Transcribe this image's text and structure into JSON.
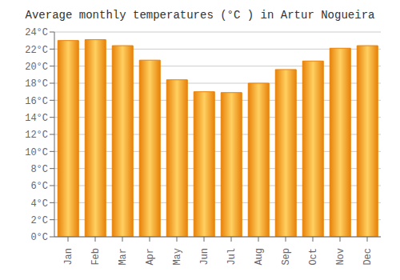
{
  "chart_data": {
    "type": "bar",
    "title": "Average monthly temperatures (°C ) in Artur Nogueira",
    "categories": [
      "Jan",
      "Feb",
      "Mar",
      "Apr",
      "May",
      "Jun",
      "Jul",
      "Aug",
      "Sep",
      "Oct",
      "Nov",
      "Dec"
    ],
    "values": [
      23.0,
      23.1,
      22.4,
      20.7,
      18.4,
      17.0,
      16.9,
      18.0,
      19.6,
      20.6,
      22.1,
      22.4
    ],
    "color": "#E8820A",
    "ylim": [
      0,
      24
    ],
    "yticks": [
      {
        "value": 0,
        "label": "0°C"
      },
      {
        "value": 2,
        "label": "2°C"
      },
      {
        "value": 4,
        "label": "4°C"
      },
      {
        "value": 6,
        "label": "6°C"
      },
      {
        "value": 8,
        "label": "8°C"
      },
      {
        "value": 10,
        "label": "10°C"
      },
      {
        "value": 12,
        "label": "12°C"
      },
      {
        "value": 14,
        "label": "14°C"
      },
      {
        "value": 16,
        "label": "16°C"
      },
      {
        "value": 18,
        "label": "18°C"
      },
      {
        "value": 20,
        "label": "20°C"
      },
      {
        "value": 22,
        "label": "22°C"
      },
      {
        "value": 24,
        "label": "24°C"
      }
    ],
    "grid": true
  }
}
